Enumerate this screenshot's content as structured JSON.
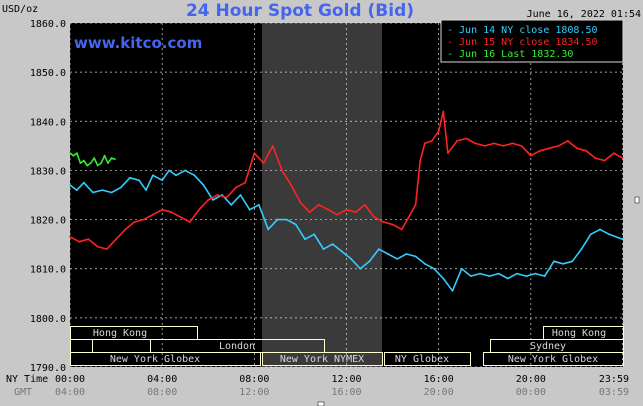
{
  "header": {
    "title": "24 Hour Spot Gold (Bid)",
    "date_label": "June 16, 2022 01:54",
    "unit_label": "USD/oz",
    "watermark": "www.kitco.com"
  },
  "colors": {
    "background": "#c8c8c8",
    "plot_background": "#000000",
    "gridline": "#d8d8d8",
    "title": "#4466ee",
    "watermark": "#4466ee",
    "session_band": "#3a3a3a",
    "market_box": "#ffffcc",
    "market_label": "#d8d8d8"
  },
  "legend": {
    "position": "top-right",
    "entries": [
      {
        "text": "- Jun 14 NY close 1808.50",
        "color": "#33ccff"
      },
      {
        "text": "- Jun 15 NY close 1834.50",
        "color": "#ff2222"
      },
      {
        "text": "- Jun 16 Last 1832.30",
        "color": "#33ee33"
      }
    ]
  },
  "markets": {
    "hong_kong_1": "Hong Kong",
    "london": "London",
    "new_york_globex_1": "New York Globex",
    "new_york_nymex": "New York NYMEX",
    "ny_globex": "NY Globex",
    "sydney": "Sydney",
    "hong_kong_2": "Hong Kong",
    "new_york_globex_2": "New York Globex"
  },
  "axis_labels": {
    "ny_time_label": "NY Time",
    "gmt_label": "GMT"
  },
  "chart_data": {
    "type": "line",
    "title": "24 Hour Spot Gold (Bid)",
    "ylabel": "USD/oz",
    "ylim": [
      1790,
      1860
    ],
    "xlim": [
      0,
      24
    ],
    "grid": true,
    "legend_position": "top-right",
    "y_ticks": [
      1790,
      1800,
      1810,
      1820,
      1830,
      1840,
      1850,
      1860
    ],
    "y_tick_labels": [
      "1790.0",
      "1800.0",
      "1810.0",
      "1820.0",
      "1830.0",
      "1840.0",
      "1850.0",
      "1860.0"
    ],
    "x_ticks": [
      0,
      4,
      8,
      12,
      16,
      20,
      23.983
    ],
    "x_tick_labels_ny": [
      "00:00",
      "04:00",
      "08:00",
      "12:00",
      "16:00",
      "20:00",
      "23:59"
    ],
    "x_tick_labels_gmt": [
      "04:00",
      "08:00",
      "12:00",
      "16:00",
      "20:00",
      "00:00",
      "03:59"
    ],
    "series": [
      {
        "name": "Jun 14 NY close 1808.50",
        "color": "#33ccff",
        "x": [
          0,
          0.3,
          0.6,
          1.0,
          1.4,
          1.8,
          2.2,
          2.6,
          3.0,
          3.3,
          3.6,
          4.0,
          4.3,
          4.6,
          5.0,
          5.4,
          5.8,
          6.2,
          6.6,
          7.0,
          7.4,
          7.8,
          8.2,
          8.6,
          9.0,
          9.4,
          9.8,
          10.2,
          10.6,
          11.0,
          11.4,
          11.8,
          12.2,
          12.6,
          13.0,
          13.4,
          13.8,
          14.2,
          14.6,
          15.0,
          15.4,
          15.8,
          16.2,
          16.6,
          17.0,
          17.4,
          17.8,
          18.2,
          18.6,
          19.0,
          19.4,
          19.8,
          20.2,
          20.6,
          21.0,
          21.4,
          21.8,
          22.2,
          22.6,
          23.0,
          23.4,
          23.98
        ],
        "y": [
          1827,
          1826,
          1827.5,
          1825.5,
          1826,
          1825.5,
          1826.5,
          1828.5,
          1828,
          1826,
          1829,
          1828,
          1830,
          1829,
          1830,
          1829,
          1827,
          1824,
          1825,
          1823,
          1825,
          1822,
          1823,
          1818,
          1820,
          1820,
          1819,
          1816,
          1817,
          1814,
          1815,
          1813.5,
          1812,
          1810,
          1811.5,
          1814,
          1813,
          1812,
          1813,
          1812.5,
          1811,
          1810,
          1808,
          1805.5,
          1810,
          1808.5,
          1809,
          1808.5,
          1809,
          1808,
          1809,
          1808.5,
          1809,
          1808.5,
          1811.5,
          1811,
          1811.5,
          1814,
          1817,
          1818,
          1817,
          1816
        ]
      },
      {
        "name": "Jun 15 NY close 1834.50",
        "color": "#ff2222",
        "x": [
          0,
          0.4,
          0.8,
          1.2,
          1.6,
          2.0,
          2.4,
          2.8,
          3.2,
          3.6,
          4.0,
          4.4,
          4.8,
          5.2,
          5.6,
          6.0,
          6.4,
          6.8,
          7.2,
          7.6,
          8.0,
          8.4,
          8.8,
          9.2,
          9.6,
          10.0,
          10.4,
          10.8,
          11.2,
          11.6,
          12.0,
          12.4,
          12.8,
          13.2,
          13.6,
          14.0,
          14.4,
          14.7,
          15.0,
          15.2,
          15.4,
          15.7,
          16.0,
          16.2,
          16.4,
          16.8,
          17.2,
          17.6,
          18.0,
          18.4,
          18.8,
          19.2,
          19.6,
          20.0,
          20.4,
          20.8,
          21.2,
          21.6,
          22.0,
          22.4,
          22.8,
          23.2,
          23.6,
          23.98
        ],
        "y": [
          1816.5,
          1815.5,
          1816,
          1814.5,
          1814,
          1816,
          1818,
          1819.5,
          1820,
          1821,
          1822,
          1821.5,
          1820.5,
          1819.5,
          1822,
          1824,
          1825,
          1824.5,
          1826.5,
          1827.5,
          1833.5,
          1831.5,
          1835,
          1830,
          1827,
          1823.5,
          1821.5,
          1823,
          1822,
          1821,
          1822,
          1821.5,
          1823,
          1820.5,
          1819.5,
          1819,
          1818,
          1820.5,
          1823,
          1832,
          1835.5,
          1836,
          1838,
          1842,
          1833.5,
          1836,
          1836.5,
          1835.5,
          1835,
          1835.5,
          1835,
          1835.5,
          1835,
          1833,
          1834,
          1834.5,
          1835,
          1836,
          1834.5,
          1834,
          1832.5,
          1832,
          1833.5,
          1832.5
        ]
      },
      {
        "name": "Jun 16 Last 1832.30",
        "color": "#33ee33",
        "x": [
          0,
          0.15,
          0.3,
          0.45,
          0.6,
          0.75,
          0.9,
          1.05,
          1.2,
          1.35,
          1.5,
          1.65,
          1.8,
          1.95
        ],
        "y": [
          1833.5,
          1833,
          1833.5,
          1831.5,
          1832,
          1831,
          1831.5,
          1832.5,
          1831,
          1831.5,
          1833,
          1831.5,
          1832.5,
          1832.3
        ]
      }
    ]
  }
}
